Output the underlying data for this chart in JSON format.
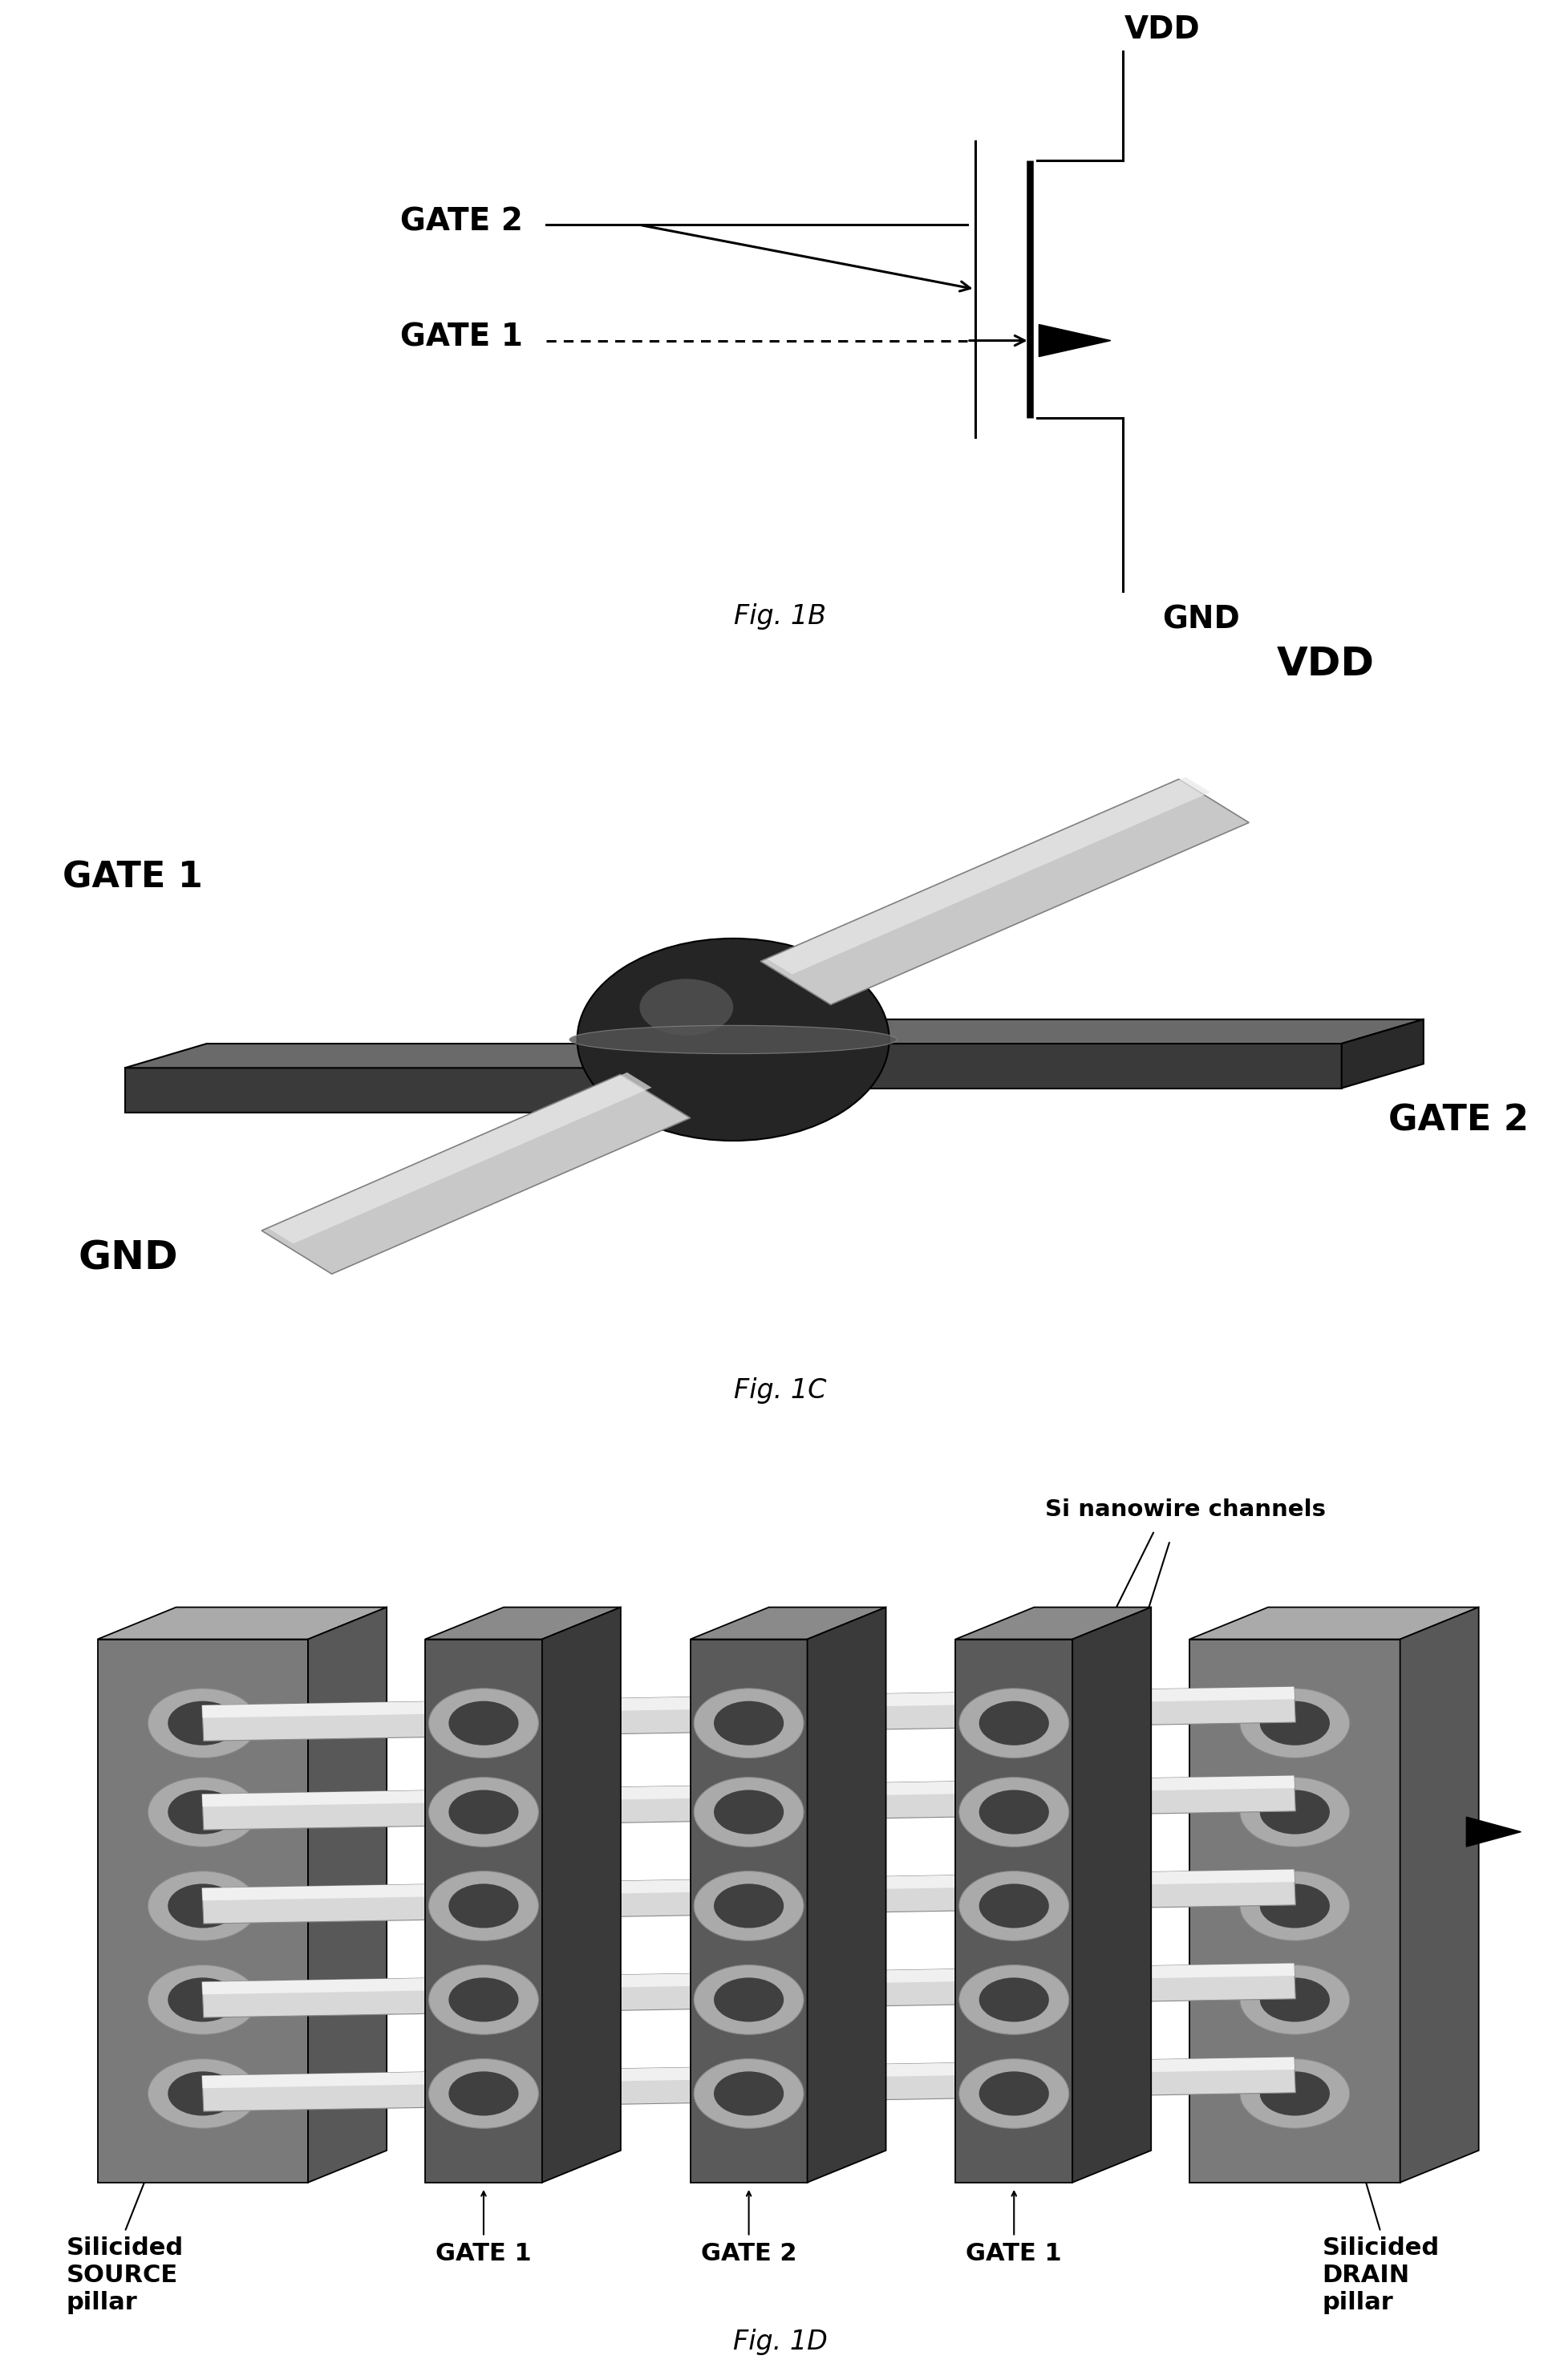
{
  "background_color": "#ffffff",
  "fig1b": {
    "vdd_label": "VDD",
    "gnd_label": "GND",
    "gate1_label": "GATE 1",
    "gate2_label": "GATE 2",
    "fig_label": "Fig. 1B",
    "label_fontsize": 28,
    "fig_label_fontsize": 24
  },
  "fig1c": {
    "vdd_label": "VDD",
    "gnd_label": "GND",
    "gate1_label": "GATE 1",
    "gate2_label": "GATE 2",
    "fig_label": "Fig. 1C",
    "label_fontsize": 32,
    "fig_label_fontsize": 24
  },
  "fig1d": {
    "source_label": "Silicided\nSOURCE\npillar",
    "drain_label": "Silicided\nDRAIN\npillar",
    "gate1_label": "GATE 1",
    "gate2_label": "GATE 2",
    "gate1b_label": "GATE 1",
    "nanowire_label": "Si nanowire channels",
    "fig_label": "Fig. 1D",
    "label_fontsize": 22,
    "fig_label_fontsize": 24
  }
}
